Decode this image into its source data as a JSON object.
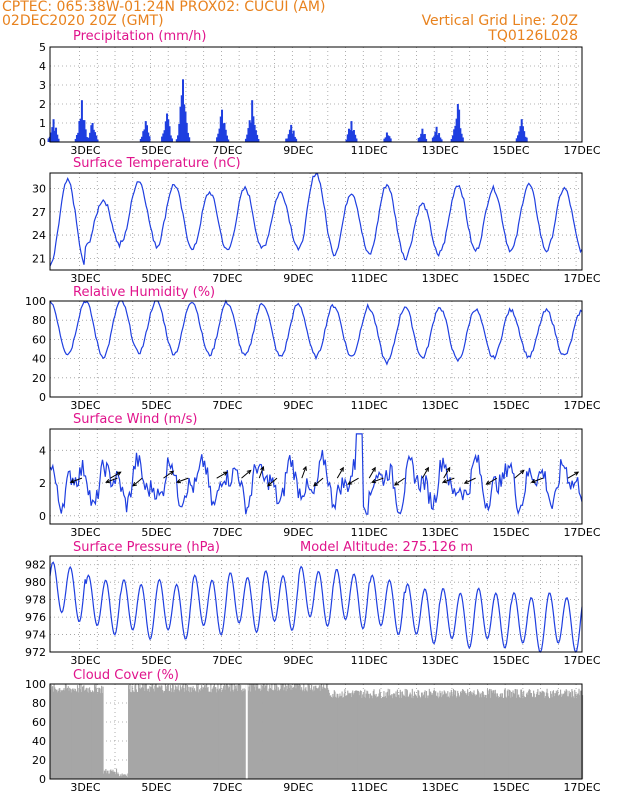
{
  "header": {
    "line1_left": "CPTEC:   065:38W-01:24N   PROX02: CUCUI (AM)",
    "line2_left": "02DEC2020 20Z (GMT)",
    "line2_right": "Vertical Grid Line: 20Z",
    "line3_right": "TQ0126L028"
  },
  "colors": {
    "header": "#e8821e",
    "title": "#e0148c",
    "series": "#1f3fe0",
    "cloud": "#a6a6a6",
    "grid": "#9a9a9a"
  },
  "chart_data": [
    {
      "id": "precip",
      "type": "bar",
      "title": "Precipitation  (mm/h)",
      "ylim": [
        0,
        5
      ],
      "yticks": [
        0,
        1,
        2,
        3,
        4,
        5
      ],
      "xlim_days": [
        2.0,
        17.0
      ],
      "xticks": [
        "3DEC",
        "5DEC",
        "7DEC",
        "9DEC",
        "11DEC",
        "13DEC",
        "15DEC",
        "17DEC"
      ],
      "grid": true,
      "bursts": [
        {
          "day": 2.1,
          "peak": 1.2
        },
        {
          "day": 2.9,
          "peak": 2.2
        },
        {
          "day": 3.2,
          "peak": 1.0
        },
        {
          "day": 4.7,
          "peak": 1.1
        },
        {
          "day": 5.3,
          "peak": 1.5
        },
        {
          "day": 5.75,
          "peak": 3.3
        },
        {
          "day": 6.85,
          "peak": 1.7
        },
        {
          "day": 7.7,
          "peak": 2.2
        },
        {
          "day": 8.8,
          "peak": 0.9
        },
        {
          "day": 10.5,
          "peak": 1.1
        },
        {
          "day": 11.5,
          "peak": 0.5
        },
        {
          "day": 12.5,
          "peak": 0.7
        },
        {
          "day": 12.9,
          "peak": 0.8
        },
        {
          "day": 13.5,
          "peak": 2.0
        },
        {
          "day": 15.3,
          "peak": 1.2
        }
      ]
    },
    {
      "id": "temp",
      "type": "line",
      "title": "Surface Temperature (nC)",
      "ylim": [
        19.5,
        32
      ],
      "yticks": [
        21,
        24,
        27,
        30
      ],
      "xlim_days": [
        2.0,
        17.0
      ],
      "xticks": [
        "3DEC",
        "5DEC",
        "7DEC",
        "9DEC",
        "11DEC",
        "13DEC",
        "15DEC",
        "17DEC"
      ],
      "grid": true,
      "daily_max": [
        31.0,
        28.5,
        31.0,
        30.5,
        29.5,
        30.0,
        29.5,
        32.0,
        29.5,
        30.5,
        28.0,
        30.5,
        30.0,
        30.5,
        30.0,
        30.0
      ],
      "daily_min": [
        20.0,
        22.5,
        23.0,
        22.5,
        22.0,
        22.0,
        22.5,
        22.0,
        21.5,
        21.5,
        21.0,
        22.0,
        22.0,
        22.0,
        22.0,
        22.0
      ]
    },
    {
      "id": "rh",
      "type": "line",
      "title": "Relative Humidity  (%)",
      "ylim": [
        0,
        100
      ],
      "yticks": [
        0,
        20,
        40,
        60,
        80,
        100
      ],
      "xlim_days": [
        2.0,
        17.0
      ],
      "xticks": [
        "3DEC",
        "5DEC",
        "7DEC",
        "9DEC",
        "11DEC",
        "13DEC",
        "15DEC",
        "17DEC"
      ],
      "grid": true,
      "daily_max": [
        100,
        100,
        100,
        100,
        100,
        98,
        97,
        96,
        95,
        92,
        95,
        92,
        91,
        90,
        90,
        88
      ],
      "daily_min": [
        45,
        42,
        46,
        45,
        44,
        43,
        42,
        42,
        42,
        36,
        41,
        38,
        41,
        42,
        43,
        43
      ]
    },
    {
      "id": "wind",
      "type": "line",
      "title": "Surface Wind  (m/s)",
      "ylim": [
        -0.5,
        5.3
      ],
      "yticks": [
        0,
        2,
        4
      ],
      "xlim_days": [
        2.0,
        17.0
      ],
      "xticks": [
        "3DEC",
        "5DEC",
        "7DEC",
        "9DEC",
        "11DEC",
        "13DEC",
        "15DEC",
        "17DEC"
      ],
      "grid": true,
      "arrows": [
        {
          "day": 2.9,
          "dir": 200
        },
        {
          "day": 3.7,
          "dir": 30
        },
        {
          "day": 3.9,
          "dir": 200
        },
        {
          "day": 4.6,
          "dir": 220
        },
        {
          "day": 5.2,
          "dir": 35
        },
        {
          "day": 5.9,
          "dir": 200
        },
        {
          "day": 6.7,
          "dir": 30
        },
        {
          "day": 7.4,
          "dir": 40
        },
        {
          "day": 7.9,
          "dir": 70
        },
        {
          "day": 8.4,
          "dir": 220
        },
        {
          "day": 9.1,
          "dir": 70
        },
        {
          "day": 9.7,
          "dir": 220
        },
        {
          "day": 10.1,
          "dir": 60
        },
        {
          "day": 10.7,
          "dir": 210
        },
        {
          "day": 11.0,
          "dir": 60
        },
        {
          "day": 11.4,
          "dir": 200
        },
        {
          "day": 12.0,
          "dir": 215
        },
        {
          "day": 12.5,
          "dir": 60
        },
        {
          "day": 13.1,
          "dir": 60
        },
        {
          "day": 13.4,
          "dir": 200
        },
        {
          "day": 14.0,
          "dir": 205
        },
        {
          "day": 14.6,
          "dir": 210
        },
        {
          "day": 15.1,
          "dir": 40
        },
        {
          "day": 15.9,
          "dir": 200
        },
        {
          "day": 16.6,
          "dir": 30
        }
      ]
    },
    {
      "id": "pres",
      "type": "line",
      "title": "Surface Pressure (hPa)",
      "annotation": "Model Altitude: 275.126 m",
      "ylim": [
        972,
        983
      ],
      "yticks": [
        972,
        974,
        976,
        978,
        980,
        982
      ],
      "xlim_days": [
        2.0,
        17.0
      ],
      "xticks": [
        "3DEC",
        "5DEC",
        "7DEC",
        "9DEC",
        "11DEC",
        "13DEC",
        "15DEC",
        "17DEC"
      ],
      "grid": true,
      "daily_mean": [
        979.0,
        977.5,
        977.0,
        977.0,
        977.5,
        977.8,
        978.0,
        978.5,
        978.2,
        977.5,
        976.5,
        976.0,
        976.0,
        975.5,
        975.5,
        975.0
      ],
      "amplitude": 3.0
    },
    {
      "id": "cloud",
      "type": "area",
      "title": "Cloud Cover (%)",
      "ylim": [
        0,
        100
      ],
      "yticks": [
        0,
        20,
        40,
        60,
        80,
        100
      ],
      "xlim_days": [
        2.0,
        17.0
      ],
      "xticks": [
        "3DEC",
        "5DEC",
        "7DEC",
        "9DEC",
        "11DEC",
        "13DEC",
        "15DEC",
        "17DEC"
      ],
      "grid": true,
      "segments": [
        {
          "from": 2.0,
          "to": 3.5,
          "value": 95
        },
        {
          "from": 3.5,
          "to": 3.9,
          "value": 8
        },
        {
          "from": 3.9,
          "to": 4.2,
          "value": 5
        },
        {
          "from": 4.2,
          "to": 7.5,
          "value": 96
        },
        {
          "from": 7.5,
          "to": 9.8,
          "value": 97
        },
        {
          "from": 9.8,
          "to": 17.0,
          "value": 90
        }
      ]
    }
  ]
}
